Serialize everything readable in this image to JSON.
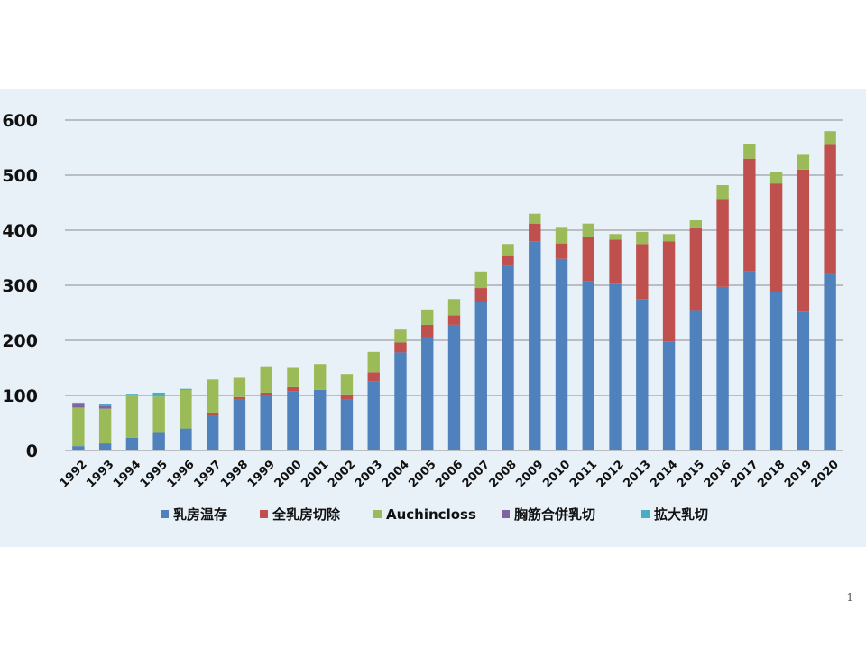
{
  "page": {
    "number": "1"
  },
  "colors": {
    "panel_bg": "#e9f1f8",
    "grid": "#8c8c8c",
    "series": [
      "#4f81bd",
      "#c0504d",
      "#9bbb59",
      "#8064a2",
      "#4bacc6"
    ]
  },
  "chart_data": {
    "type": "bar",
    "stacked": true,
    "title": "",
    "xlabel": "",
    "ylabel": "",
    "ylim": [
      0,
      600
    ],
    "yticks": [
      0,
      100,
      200,
      300,
      400,
      500,
      600
    ],
    "grid": true,
    "legend_position": "bottom",
    "categories": [
      "1992",
      "1993",
      "1994",
      "1995",
      "1996",
      "1997",
      "1998",
      "1999",
      "2000",
      "2001",
      "2002",
      "2003",
      "2004",
      "2005",
      "2006",
      "2007",
      "2008",
      "2009",
      "2010",
      "2011",
      "2012",
      "2013",
      "2014",
      "2015",
      "2016",
      "2017",
      "2018",
      "2019",
      "2020"
    ],
    "series": [
      {
        "name": "乳房温存",
        "color": "#4f81bd",
        "values": [
          8,
          13,
          23,
          32,
          40,
          63,
          92,
          100,
          108,
          110,
          92,
          125,
          178,
          205,
          228,
          270,
          335,
          380,
          348,
          307,
          303,
          275,
          198,
          255,
          297,
          325,
          287,
          252,
          322
        ]
      },
      {
        "name": "全乳房切除",
        "color": "#c0504d",
        "values": [
          0,
          0,
          0,
          0,
          0,
          6,
          5,
          5,
          7,
          0,
          10,
          17,
          18,
          23,
          17,
          25,
          18,
          32,
          28,
          80,
          80,
          100,
          182,
          150,
          160,
          205,
          198,
          258,
          233
        ]
      },
      {
        "name": "Auchincloss",
        "color": "#9bbb59",
        "values": [
          70,
          63,
          77,
          66,
          70,
          60,
          35,
          48,
          35,
          47,
          37,
          37,
          25,
          28,
          30,
          30,
          22,
          18,
          30,
          25,
          10,
          22,
          13,
          13,
          25,
          27,
          20,
          27,
          25
        ]
      },
      {
        "name": "胸筋合併乳切",
        "color": "#8064a2",
        "values": [
          7,
          5,
          1,
          0,
          1,
          0,
          0,
          0,
          0,
          0,
          0,
          0,
          0,
          0,
          0,
          0,
          0,
          0,
          0,
          0,
          0,
          0,
          0,
          0,
          0,
          0,
          0,
          0,
          0
        ]
      },
      {
        "name": "拡大乳切",
        "color": "#4bacc6",
        "values": [
          2,
          3,
          2,
          7,
          1,
          0,
          0,
          0,
          0,
          0,
          0,
          0,
          0,
          0,
          0,
          0,
          0,
          0,
          0,
          0,
          0,
          0,
          0,
          0,
          0,
          0,
          0,
          0,
          0
        ]
      }
    ]
  }
}
